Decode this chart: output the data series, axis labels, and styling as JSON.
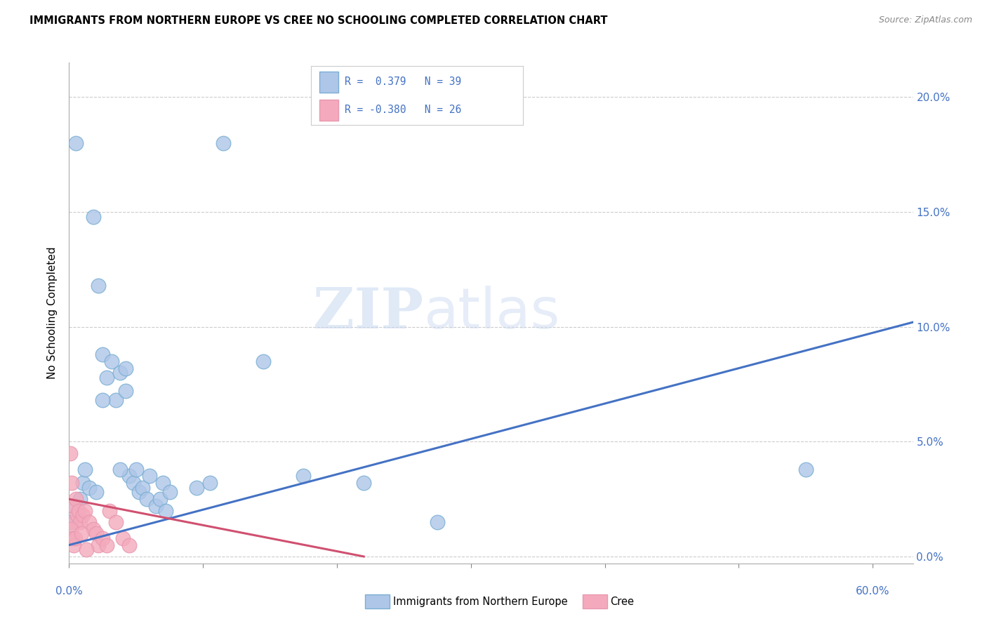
{
  "title": "IMMIGRANTS FROM NORTHERN EUROPE VS CREE NO SCHOOLING COMPLETED CORRELATION CHART",
  "source": "Source: ZipAtlas.com",
  "ylabel": "No Schooling Completed",
  "yticks": [
    0.0,
    5.0,
    10.0,
    15.0,
    20.0
  ],
  "xtick_minor": [
    10.0,
    20.0,
    30.0,
    40.0,
    50.0
  ],
  "xlim": [
    0.0,
    63.0
  ],
  "ylim": [
    -0.3,
    21.5
  ],
  "watermark_zip": "ZIP",
  "watermark_atlas": "atlas",
  "blue_color": "#aec6e8",
  "pink_color": "#f4aabc",
  "blue_edge_color": "#7bafd4",
  "pink_edge_color": "#e899b0",
  "blue_line_color": "#4472c4",
  "pink_line_color": "#d05070",
  "blue_scatter": [
    [
      0.5,
      18.0
    ],
    [
      1.8,
      14.8
    ],
    [
      2.2,
      11.8
    ],
    [
      2.5,
      8.8
    ],
    [
      2.8,
      7.8
    ],
    [
      3.2,
      8.5
    ],
    [
      3.5,
      6.8
    ],
    [
      3.8,
      8.0
    ],
    [
      4.2,
      7.2
    ],
    [
      4.5,
      3.5
    ],
    [
      4.8,
      3.2
    ],
    [
      5.0,
      3.8
    ],
    [
      5.2,
      2.8
    ],
    [
      5.5,
      3.0
    ],
    [
      5.8,
      2.5
    ],
    [
      6.0,
      3.5
    ],
    [
      6.5,
      2.2
    ],
    [
      6.8,
      2.5
    ],
    [
      7.0,
      3.2
    ],
    [
      7.2,
      2.0
    ],
    [
      7.5,
      2.8
    ],
    [
      0.8,
      2.5
    ],
    [
      1.0,
      3.2
    ],
    [
      1.5,
      3.0
    ],
    [
      2.0,
      2.8
    ],
    [
      9.5,
      3.0
    ],
    [
      10.5,
      3.2
    ],
    [
      11.5,
      18.0
    ],
    [
      14.5,
      8.5
    ],
    [
      17.5,
      3.5
    ],
    [
      22.0,
      3.2
    ],
    [
      27.5,
      1.5
    ],
    [
      55.0,
      3.8
    ],
    [
      0.15,
      1.5
    ],
    [
      3.8,
      3.8
    ],
    [
      2.5,
      6.8
    ],
    [
      4.2,
      8.2
    ],
    [
      0.3,
      2.2
    ],
    [
      1.2,
      3.8
    ]
  ],
  "pink_scatter": [
    [
      0.1,
      4.5
    ],
    [
      0.2,
      3.2
    ],
    [
      0.3,
      2.2
    ],
    [
      0.4,
      1.5
    ],
    [
      0.5,
      2.5
    ],
    [
      0.6,
      1.8
    ],
    [
      0.7,
      2.0
    ],
    [
      0.8,
      1.5
    ],
    [
      1.0,
      1.8
    ],
    [
      1.2,
      2.0
    ],
    [
      1.5,
      1.5
    ],
    [
      1.8,
      1.2
    ],
    [
      2.0,
      1.0
    ],
    [
      2.2,
      0.5
    ],
    [
      2.5,
      0.8
    ],
    [
      2.8,
      0.5
    ],
    [
      3.0,
      2.0
    ],
    [
      3.5,
      1.5
    ],
    [
      4.0,
      0.8
    ],
    [
      4.5,
      0.5
    ],
    [
      0.15,
      1.2
    ],
    [
      0.25,
      0.8
    ],
    [
      0.35,
      0.5
    ],
    [
      0.45,
      0.8
    ],
    [
      0.9,
      1.0
    ],
    [
      1.3,
      0.3
    ]
  ],
  "blue_trend_x": [
    0.0,
    63.0
  ],
  "blue_trend_y": [
    0.5,
    10.2
  ],
  "pink_trend_x": [
    0.0,
    22.0
  ],
  "pink_trend_y": [
    2.5,
    0.0
  ]
}
